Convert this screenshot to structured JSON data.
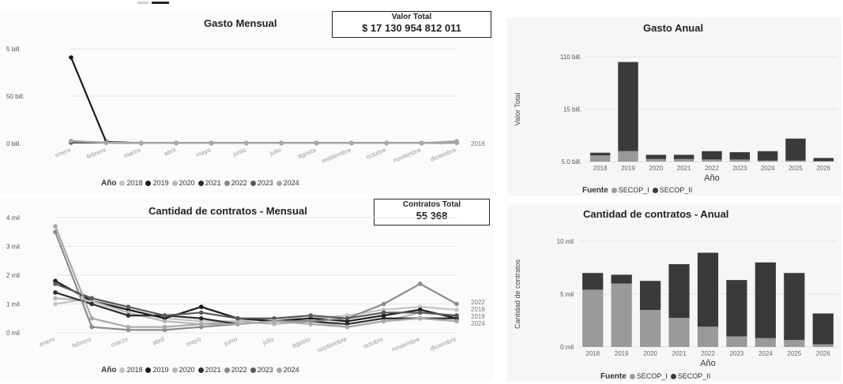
{
  "colors": {
    "y2018": "#c4c4c4",
    "y2019": "#1a1a1a",
    "y2020": "#b8b8b8",
    "y2021": "#2e2e2e",
    "y2022": "#8a8a8a",
    "y2023": "#5a5a5a",
    "y2024": "#a8a8a8",
    "secop1": "#9a9a9a",
    "secop2": "#3a3a3a",
    "grid": "#e6e6e6"
  },
  "months": [
    "enero",
    "febrero",
    "marzo",
    "abril",
    "mayo",
    "junio",
    "julio",
    "agosto",
    "septiembre",
    "octubre",
    "noviembre",
    "diciembre"
  ],
  "legend_label": "Año",
  "years": [
    "2018",
    "2019",
    "2020",
    "2021",
    "2022",
    "2023",
    "2024"
  ],
  "fuente_label": "Fuente",
  "fuentes": [
    "SECOP_I",
    "SECOP_II"
  ],
  "gasto_mensual": {
    "title": "Gasto Mensual",
    "card_label": "Valor Total",
    "card_value": "$ 17 130 954 812 011",
    "yticks": [
      "0 bill.",
      "50 bill.",
      "5 bill."
    ],
    "end_label": "2018"
  },
  "contratos_mensual": {
    "title": "Cantidad de contratos - Mensual",
    "card_label": "Contratos Total",
    "card_value": "55 368",
    "yticks": [
      "0 mil",
      "1 mil",
      "2 mil",
      "3 mil",
      "4 mil"
    ],
    "end_labels": [
      "2022",
      "2018",
      "2019",
      "2024"
    ]
  },
  "gasto_anual": {
    "title": "Gasto Anual",
    "ylabel": "Valor Total",
    "yticks": [
      "5.0 bill.",
      "15 bill.",
      "110 bill."
    ],
    "xlabel": "Año"
  },
  "contratos_anual": {
    "title": "Cantidad de contratos - Anual",
    "ylabel": "Cantidad de contratos",
    "yticks": [
      "0 mil",
      "5 mil",
      "10 mil"
    ],
    "xlabel": "Año"
  },
  "chart_data": [
    {
      "type": "line",
      "title": "Gasto Mensual",
      "x": [
        "enero",
        "febrero",
        "marzo",
        "abril",
        "mayo",
        "junio",
        "julio",
        "agosto",
        "septiembre",
        "octubre",
        "noviembre",
        "diciembre"
      ],
      "ylim": [
        0,
        11
      ],
      "series": [
        {
          "name": "2018",
          "values": [
            0.3,
            0.1,
            0.05,
            0.05,
            0.05,
            0.05,
            0.05,
            0.05,
            0.05,
            0.05,
            0.05,
            0.3
          ]
        },
        {
          "name": "2019",
          "values": [
            10.0,
            0.2,
            0.05,
            0.05,
            0.05,
            0.05,
            0.05,
            0.05,
            0.05,
            0.05,
            0.05,
            0.1
          ]
        },
        {
          "name": "2020",
          "values": [
            0.2,
            0.1,
            0.05,
            0.05,
            0.05,
            0.05,
            0.05,
            0.05,
            0.05,
            0.05,
            0.05,
            0.2
          ]
        },
        {
          "name": "2021",
          "values": [
            0.15,
            0.1,
            0.05,
            0.05,
            0.05,
            0.05,
            0.05,
            0.05,
            0.05,
            0.05,
            0.05,
            0.1
          ]
        },
        {
          "name": "2022",
          "values": [
            0.2,
            0.1,
            0.05,
            0.05,
            0.05,
            0.05,
            0.05,
            0.05,
            0.05,
            0.05,
            0.05,
            0.15
          ]
        },
        {
          "name": "2023",
          "values": [
            0.1,
            0.1,
            0.05,
            0.05,
            0.05,
            0.05,
            0.05,
            0.05,
            0.05,
            0.05,
            0.05,
            0.1
          ]
        },
        {
          "name": "2024",
          "values": [
            0.3,
            0.1,
            0.05,
            0.05,
            0.05,
            0.05,
            0.05,
            0.05,
            0.05,
            0.05,
            0.05,
            0.1
          ]
        }
      ]
    },
    {
      "type": "line",
      "title": "Cantidad de contratos - Mensual",
      "x": [
        "enero",
        "febrero",
        "marzo",
        "abril",
        "mayo",
        "junio",
        "julio",
        "agosto",
        "septiembre",
        "octubre",
        "noviembre",
        "diciembre"
      ],
      "ylim": [
        0,
        4
      ],
      "series": [
        {
          "name": "2018",
          "values": [
            1.0,
            1.2,
            0.8,
            0.5,
            0.4,
            0.4,
            0.5,
            0.5,
            0.6,
            0.8,
            0.9,
            0.8
          ]
        },
        {
          "name": "2019",
          "values": [
            1.8,
            1.1,
            0.8,
            0.5,
            0.9,
            0.5,
            0.4,
            0.5,
            0.4,
            0.6,
            0.8,
            0.5
          ]
        },
        {
          "name": "2020",
          "values": [
            1.2,
            1.1,
            0.7,
            0.4,
            0.3,
            0.4,
            0.3,
            0.4,
            0.2,
            0.4,
            0.7,
            0.6
          ]
        },
        {
          "name": "2021",
          "values": [
            1.4,
            1.0,
            0.6,
            0.6,
            0.5,
            0.3,
            0.4,
            0.4,
            0.3,
            0.5,
            0.5,
            0.5
          ]
        },
        {
          "name": "2022",
          "values": [
            3.5,
            0.2,
            0.1,
            0.1,
            0.2,
            0.3,
            0.4,
            0.4,
            0.5,
            1.0,
            1.7,
            1.0
          ]
        },
        {
          "name": "2023",
          "values": [
            1.7,
            1.2,
            0.9,
            0.6,
            0.7,
            0.5,
            0.5,
            0.6,
            0.5,
            0.7,
            0.7,
            0.6
          ]
        },
        {
          "name": "2024",
          "values": [
            3.7,
            0.5,
            0.2,
            0.2,
            0.3,
            0.3,
            0.4,
            0.3,
            0.2,
            0.4,
            0.5,
            0.4
          ]
        }
      ]
    },
    {
      "type": "bar",
      "title": "Gasto Anual",
      "categories": [
        "2018",
        "2019",
        "2020",
        "2021",
        "2022",
        "2023",
        "2024",
        "2025",
        "2026"
      ],
      "ylim": [
        0,
        20
      ],
      "series": [
        {
          "name": "SECOP_I",
          "values": [
            1.2,
            2.0,
            0.5,
            0.5,
            0.4,
            0.4,
            0.2,
            0.2,
            0.1
          ]
        },
        {
          "name": "SECOP_II",
          "values": [
            0.5,
            17.0,
            0.8,
            0.8,
            1.6,
            1.4,
            1.8,
            4.2,
            0.6
          ]
        }
      ]
    },
    {
      "type": "bar",
      "title": "Cantidad de contratos - Anual",
      "categories": [
        "2018",
        "2019",
        "2020",
        "2021",
        "2022",
        "2023",
        "2024",
        "2025",
        "2026"
      ],
      "ylim": [
        0,
        12
      ],
      "series": [
        {
          "name": "SECOP_I",
          "values": [
            6.5,
            7.2,
            4.2,
            3.3,
            2.3,
            1.2,
            1.0,
            0.8,
            0.3
          ]
        },
        {
          "name": "SECOP_II",
          "values": [
            1.9,
            1.0,
            3.3,
            6.1,
            8.4,
            6.4,
            8.6,
            7.6,
            3.5
          ]
        }
      ]
    }
  ]
}
